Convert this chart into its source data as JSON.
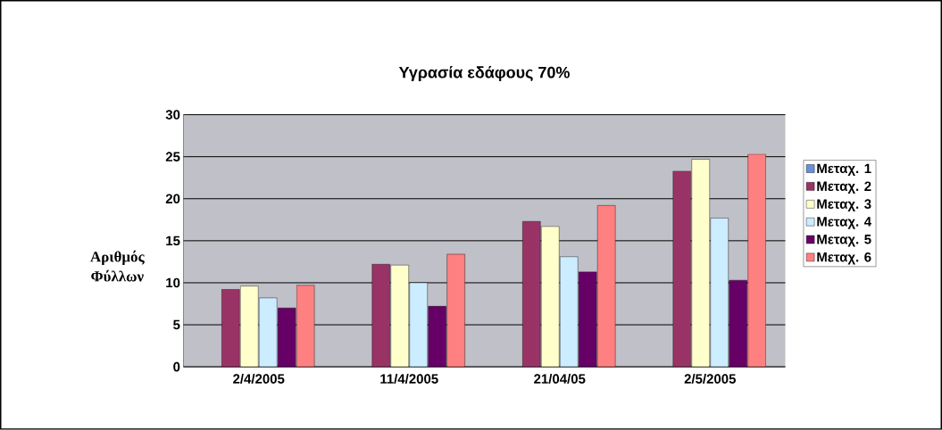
{
  "chart_data": {
    "type": "bar",
    "title": "Υγρασία εδάφους 70%",
    "ylabel": "Αριθμός Φύλλων",
    "categories": [
      "2/4/2005",
      "11/4/2005",
      "21/04/05",
      "2/5/2005"
    ],
    "series": [
      {
        "name": "Μεταχ. 1",
        "color": "#6a8fd8",
        "values": [
          null,
          null,
          null,
          null
        ]
      },
      {
        "name": "Μεταχ. 2",
        "color": "#993366",
        "values": [
          9.2,
          12.2,
          17.3,
          23.3
        ]
      },
      {
        "name": "Μεταχ. 3",
        "color": "#ffffcc",
        "values": [
          9.6,
          12.1,
          16.7,
          24.7
        ]
      },
      {
        "name": "Μεταχ. 4",
        "color": "#ccecff",
        "values": [
          8.2,
          10.0,
          13.1,
          17.7
        ]
      },
      {
        "name": "Μεταχ. 5",
        "color": "#660066",
        "values": [
          7.0,
          7.2,
          11.3,
          10.3
        ]
      },
      {
        "name": "Μεταχ. 6",
        "color": "#ff8080",
        "values": [
          9.7,
          13.4,
          19.2,
          25.3
        ]
      }
    ],
    "ylim": [
      0,
      30
    ],
    "yticks": [
      0,
      5,
      10,
      15,
      20,
      25,
      30
    ],
    "grid": "y",
    "legend": "right"
  }
}
